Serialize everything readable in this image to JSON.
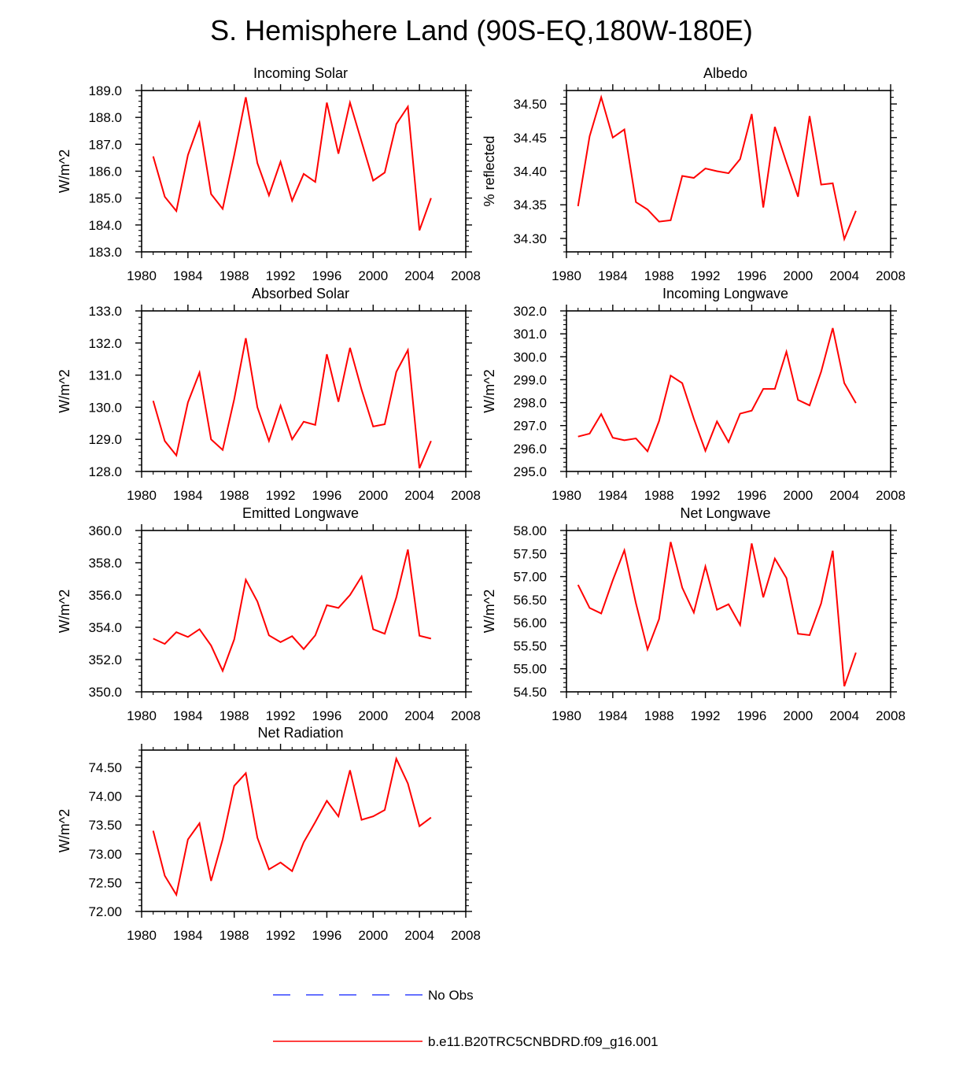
{
  "title": "S. Hemisphere Land (90S-EQ,180W-180E)",
  "legend": {
    "items": [
      {
        "label": "No Obs",
        "color": "#3344ff",
        "dash": true
      },
      {
        "label": "b.e11.B20TRC5CNBDRD.f09_g16.001",
        "color": "#ff0000",
        "dash": false
      }
    ]
  },
  "chart_data": [
    {
      "type": "line",
      "title": "Incoming Solar",
      "ylabel": "W/m^2",
      "xlim": [
        1980,
        2008
      ],
      "ylim": [
        183.0,
        189.0
      ],
      "x_ticks": [
        "1980",
        "1984",
        "1988",
        "1992",
        "1996",
        "2000",
        "2004",
        "2008"
      ],
      "y_ticks": [
        "183.0",
        "184.0",
        "185.0",
        "186.0",
        "187.0",
        "188.0",
        "189.0"
      ],
      "series": [
        {
          "name": "b.e11.B20TRC5CNBDRD.f09_g16.001",
          "x": [
            1981,
            1982,
            1983,
            1984,
            1985,
            1986,
            1987,
            1988,
            1989,
            1990,
            1991,
            1992,
            1993,
            1994,
            1995,
            1996,
            1997,
            1998,
            1999,
            2000,
            2001,
            2002,
            2003,
            2004,
            2005
          ],
          "values": [
            186.55,
            185.05,
            184.52,
            186.6,
            187.8,
            185.15,
            184.6,
            186.6,
            188.75,
            186.3,
            185.1,
            186.35,
            184.9,
            185.9,
            185.6,
            188.55,
            186.65,
            188.55,
            187.1,
            185.65,
            185.95,
            187.75,
            188.4,
            183.8,
            185.0
          ]
        }
      ]
    },
    {
      "type": "line",
      "title": "Albedo",
      "ylabel": "% reflected",
      "xlim": [
        1980,
        2008
      ],
      "ylim": [
        34.28,
        34.52
      ],
      "x_ticks": [
        "1980",
        "1984",
        "1988",
        "1992",
        "1996",
        "2000",
        "2004",
        "2008"
      ],
      "y_ticks": [
        "34.30",
        "34.35",
        "34.40",
        "34.45",
        "34.50"
      ],
      "series": [
        {
          "name": "b.e11.B20TRC5CNBDRD.f09_g16.001",
          "x": [
            1981,
            1982,
            1983,
            1984,
            1985,
            1986,
            1987,
            1988,
            1989,
            1990,
            1991,
            1992,
            1993,
            1994,
            1995,
            1996,
            1997,
            1998,
            1999,
            2000,
            2001,
            2002,
            2003,
            2004,
            2005
          ],
          "values": [
            34.348,
            34.452,
            34.51,
            34.45,
            34.462,
            34.354,
            34.343,
            34.325,
            34.327,
            34.393,
            34.39,
            34.404,
            34.4,
            34.397,
            34.418,
            34.485,
            34.346,
            34.466,
            34.413,
            34.362,
            34.482,
            34.38,
            34.382,
            34.299,
            34.341
          ]
        }
      ]
    },
    {
      "type": "line",
      "title": "Absorbed Solar",
      "ylabel": "W/m^2",
      "xlim": [
        1980,
        2008
      ],
      "ylim": [
        128.0,
        133.0
      ],
      "x_ticks": [
        "1980",
        "1984",
        "1988",
        "1992",
        "1996",
        "2000",
        "2004",
        "2008"
      ],
      "y_ticks": [
        "128.0",
        "129.0",
        "130.0",
        "131.0",
        "132.0",
        "133.0"
      ],
      "series": [
        {
          "name": "b.e11.B20TRC5CNBDRD.f09_g16.001",
          "x": [
            1981,
            1982,
            1983,
            1984,
            1985,
            1986,
            1987,
            1988,
            1989,
            1990,
            1991,
            1992,
            1993,
            1994,
            1995,
            1996,
            1997,
            1998,
            1999,
            2000,
            2001,
            2002,
            2003,
            2004,
            2005
          ],
          "values": [
            130.2,
            128.95,
            128.5,
            130.15,
            131.08,
            129.0,
            128.67,
            130.25,
            132.15,
            130.0,
            128.95,
            130.05,
            129.0,
            129.55,
            129.45,
            131.65,
            130.17,
            131.85,
            130.55,
            129.4,
            129.47,
            131.1,
            131.78,
            128.1,
            128.95
          ]
        }
      ]
    },
    {
      "type": "line",
      "title": "Incoming Longwave",
      "ylabel": "W/m^2",
      "xlim": [
        1980,
        2008
      ],
      "ylim": [
        295.0,
        302.0
      ],
      "x_ticks": [
        "1980",
        "1984",
        "1988",
        "1992",
        "1996",
        "2000",
        "2004",
        "2008"
      ],
      "y_ticks": [
        "295.0",
        "296.0",
        "297.0",
        "298.0",
        "299.0",
        "300.0",
        "301.0",
        "302.0"
      ],
      "series": [
        {
          "name": "b.e11.B20TRC5CNBDRD.f09_g16.001",
          "x": [
            1981,
            1982,
            1983,
            1984,
            1985,
            1986,
            1987,
            1988,
            1989,
            1990,
            1991,
            1992,
            1993,
            1994,
            1995,
            1996,
            1997,
            1998,
            1999,
            2000,
            2001,
            2002,
            2003,
            2004,
            2005
          ],
          "values": [
            296.52,
            296.65,
            297.5,
            296.47,
            296.36,
            296.44,
            295.88,
            297.2,
            299.18,
            298.85,
            297.3,
            295.9,
            297.18,
            296.28,
            297.52,
            297.65,
            298.6,
            298.6,
            300.22,
            298.12,
            297.88,
            299.35,
            301.25,
            298.85,
            297.98
          ]
        }
      ]
    },
    {
      "type": "line",
      "title": "Emitted Longwave",
      "ylabel": "W/m^2",
      "xlim": [
        1980,
        2008
      ],
      "ylim": [
        350.0,
        360.0
      ],
      "x_ticks": [
        "1980",
        "1984",
        "1988",
        "1992",
        "1996",
        "2000",
        "2004",
        "2008"
      ],
      "y_ticks": [
        "350.0",
        "352.0",
        "354.0",
        "356.0",
        "358.0",
        "360.0"
      ],
      "series": [
        {
          "name": "b.e11.B20TRC5CNBDRD.f09_g16.001",
          "x": [
            1981,
            1982,
            1983,
            1984,
            1985,
            1986,
            1987,
            1988,
            1989,
            1990,
            1991,
            1992,
            1993,
            1994,
            1995,
            1996,
            1997,
            1998,
            1999,
            2000,
            2001,
            2002,
            2003,
            2004,
            2005
          ],
          "values": [
            353.3,
            352.97,
            353.7,
            353.4,
            353.88,
            352.87,
            351.3,
            353.25,
            356.95,
            355.6,
            353.5,
            353.08,
            353.45,
            352.65,
            353.5,
            355.37,
            355.2,
            356.0,
            357.15,
            353.88,
            353.6,
            355.85,
            358.82,
            353.48,
            353.3
          ]
        }
      ]
    },
    {
      "type": "line",
      "title": "Net Longwave",
      "ylabel": "W/m^2",
      "xlim": [
        1980,
        2008
      ],
      "ylim": [
        54.5,
        58.0
      ],
      "x_ticks": [
        "1980",
        "1984",
        "1988",
        "1992",
        "1996",
        "2000",
        "2004",
        "2008"
      ],
      "y_ticks": [
        "54.50",
        "55.00",
        "55.50",
        "56.00",
        "56.50",
        "57.00",
        "57.50",
        "58.00"
      ],
      "series": [
        {
          "name": "b.e11.B20TRC5CNBDRD.f09_g16.001",
          "x": [
            1981,
            1982,
            1983,
            1984,
            1985,
            1986,
            1987,
            1988,
            1989,
            1990,
            1991,
            1992,
            1993,
            1994,
            1995,
            1996,
            1997,
            1998,
            1999,
            2000,
            2001,
            2002,
            2003,
            2004,
            2005
          ],
          "values": [
            56.82,
            56.32,
            56.2,
            56.92,
            57.57,
            56.42,
            55.42,
            56.08,
            57.75,
            56.76,
            56.22,
            57.22,
            56.28,
            56.4,
            55.95,
            57.72,
            56.55,
            57.39,
            56.97,
            55.76,
            55.73,
            56.42,
            57.56,
            54.62,
            55.35
          ]
        }
      ]
    },
    {
      "type": "line",
      "title": "Net Radiation",
      "ylabel": "W/m^2",
      "xlim": [
        1980,
        2008
      ],
      "ylim": [
        72.0,
        74.8
      ],
      "x_ticks": [
        "1980",
        "1984",
        "1988",
        "1992",
        "1996",
        "2000",
        "2004",
        "2008"
      ],
      "y_ticks": [
        "72.00",
        "72.50",
        "73.00",
        "73.50",
        "74.00",
        "74.50"
      ],
      "series": [
        {
          "name": "b.e11.B20TRC5CNBDRD.f09_g16.001",
          "x": [
            1981,
            1982,
            1983,
            1984,
            1985,
            1986,
            1987,
            1988,
            1989,
            1990,
            1991,
            1992,
            1993,
            1994,
            1995,
            1996,
            1997,
            1998,
            1999,
            2000,
            2001,
            2002,
            2003,
            2004,
            2005
          ],
          "values": [
            73.4,
            72.62,
            72.29,
            73.25,
            73.53,
            72.53,
            73.25,
            74.18,
            74.4,
            73.28,
            72.73,
            72.85,
            72.7,
            73.2,
            73.55,
            73.92,
            73.65,
            74.45,
            73.59,
            73.65,
            73.76,
            74.65,
            74.22,
            73.48,
            73.63
          ]
        }
      ]
    }
  ]
}
